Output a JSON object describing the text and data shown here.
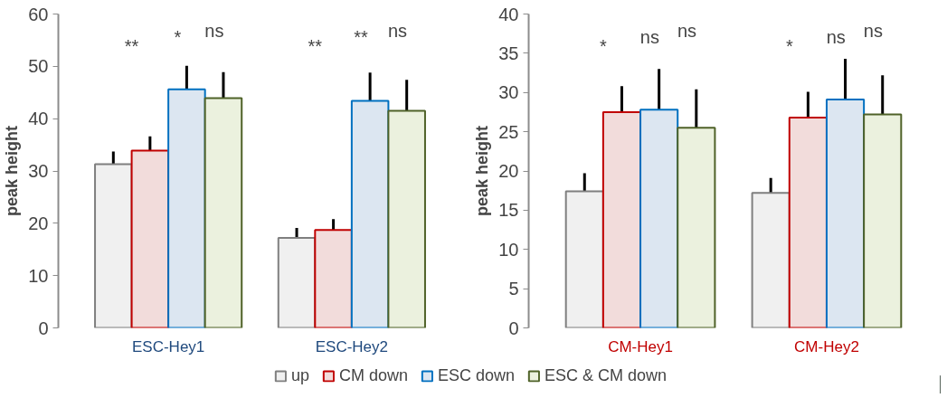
{
  "chart_data": [
    {
      "type": "bar",
      "ylabel": "peak height",
      "categories": [
        "ESC-Hey1",
        "ESC-Hey2"
      ],
      "ylim": [
        0,
        60
      ],
      "yticks": [
        0,
        10,
        20,
        30,
        40,
        50,
        60
      ],
      "grid": false,
      "legend": "bottom",
      "series": [
        {
          "name": "up",
          "color": "#f0f0f0",
          "values": [
            31.3,
            17.2
          ],
          "errors": [
            [
              31.3,
              33.7
            ],
            [
              17.2,
              19.1
            ]
          ]
        },
        {
          "name": "CM down",
          "color": "#f2dcdb",
          "values": [
            33.9,
            18.7
          ],
          "errors": [
            [
              33.9,
              36.6
            ],
            [
              18.7,
              20.8
            ]
          ]
        },
        {
          "name": "ESC down",
          "color": "#dce6f1",
          "values": [
            45.6,
            43.4
          ],
          "errors": [
            [
              45.6,
              50.1
            ],
            [
              43.4,
              48.8
            ]
          ]
        },
        {
          "name": "ESC & CM down",
          "color": "#ebf1de",
          "values": [
            43.9,
            41.5
          ],
          "errors": [
            [
              43.9,
              48.9
            ],
            [
              41.5,
              47.4
            ]
          ]
        }
      ],
      "annotations": [
        "**",
        "*",
        "ns",
        "**",
        "**",
        "ns"
      ]
    },
    {
      "type": "bar",
      "ylabel": "peak height",
      "categories": [
        "CM-Hey1",
        "CM-Hey2"
      ],
      "ylim": [
        0,
        40
      ],
      "yticks": [
        0,
        5,
        10,
        15,
        20,
        25,
        30,
        35,
        40
      ],
      "grid": false,
      "legend": false,
      "series": [
        {
          "color": "#f0f0f0",
          "values": [
            17.4,
            17.2
          ],
          "errors": [
            [
              17.4,
              19.7
            ],
            [
              17.2,
              19.1
            ]
          ]
        },
        {
          "color": "#f2dcdb",
          "values": [
            27.5,
            26.8
          ],
          "errors": [
            [
              27.5,
              30.8
            ],
            [
              26.8,
              30.1
            ]
          ]
        },
        {
          "color": "#dce6f1",
          "values": [
            27.8,
            29.1
          ],
          "errors": [
            [
              27.8,
              33.0
            ],
            [
              29.1,
              34.3
            ]
          ]
        },
        {
          "color": "#ebf1de",
          "values": [
            25.5,
            27.2
          ],
          "errors": [
            [
              25.5,
              30.4
            ],
            [
              27.2,
              32.2
            ]
          ]
        }
      ],
      "annotations": [
        "*",
        "ns",
        "ns",
        "*",
        "ns",
        "ns"
      ]
    }
  ]
}
